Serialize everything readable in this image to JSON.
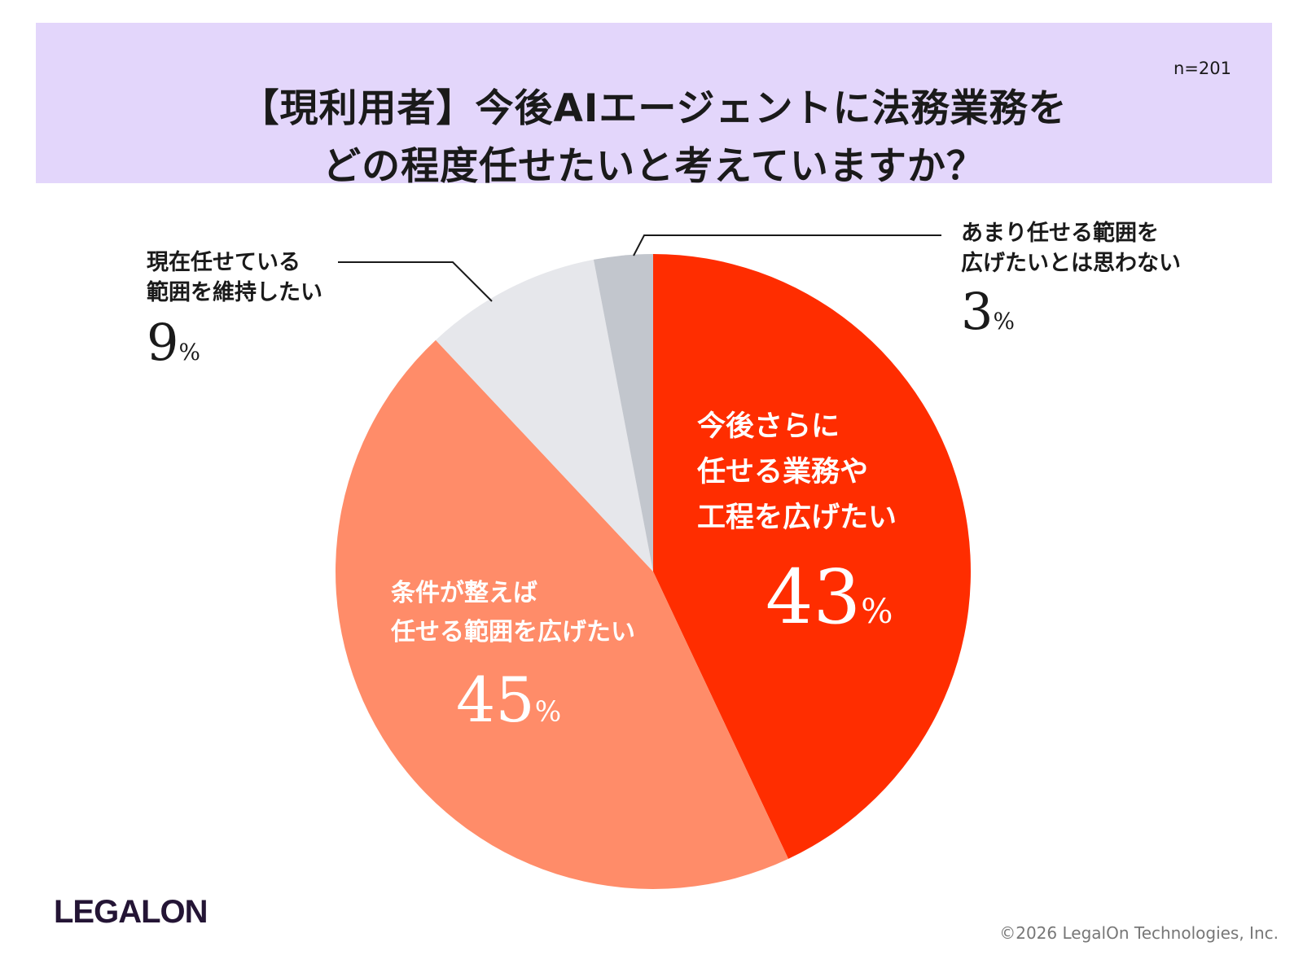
{
  "title": {
    "line1": "【現利用者】今後AIエージェントに法務業務を",
    "line2": "どの程度任せたいと考えていますか？"
  },
  "sample_size": "n=201",
  "chart_data": {
    "type": "pie",
    "title": "【現利用者】今後AIエージェントに法務業務をどの程度任せたいと考えていますか？",
    "unit": "%",
    "slices": [
      {
        "label": "今後さらに任せる業務や工程を広げたい",
        "value": 43,
        "color": "#ff2d00"
      },
      {
        "label": "条件が整えば任せる範囲を広げたい",
        "value": 45,
        "color": "#ff8c69"
      },
      {
        "label": "現在任せている範囲を維持したい",
        "value": 9,
        "color": "#e6e7eb"
      },
      {
        "label": "あまり任せる範囲を広げたいとは思わない",
        "value": 3,
        "color": "#c2c6cd"
      }
    ]
  },
  "labels": {
    "slice0": {
      "lines": [
        "今後さらに",
        "任せる業務や",
        "工程を広げたい"
      ],
      "pct": "43",
      "unit": "%"
    },
    "slice1": {
      "lines": [
        "条件が整えば",
        "任せる範囲を広げたい"
      ],
      "pct": "45",
      "unit": "%"
    },
    "slice2": {
      "lines": [
        "現在任せている",
        "範囲を維持したい"
      ],
      "pct": "9",
      "unit": "%"
    },
    "slice3": {
      "lines": [
        "あまり任せる範囲を",
        "広げたいとは思わない"
      ],
      "pct": "3",
      "unit": "%"
    }
  },
  "footer": {
    "logo": "LEGALON",
    "copyright": "©2026 LegalOn Technologies, Inc."
  }
}
